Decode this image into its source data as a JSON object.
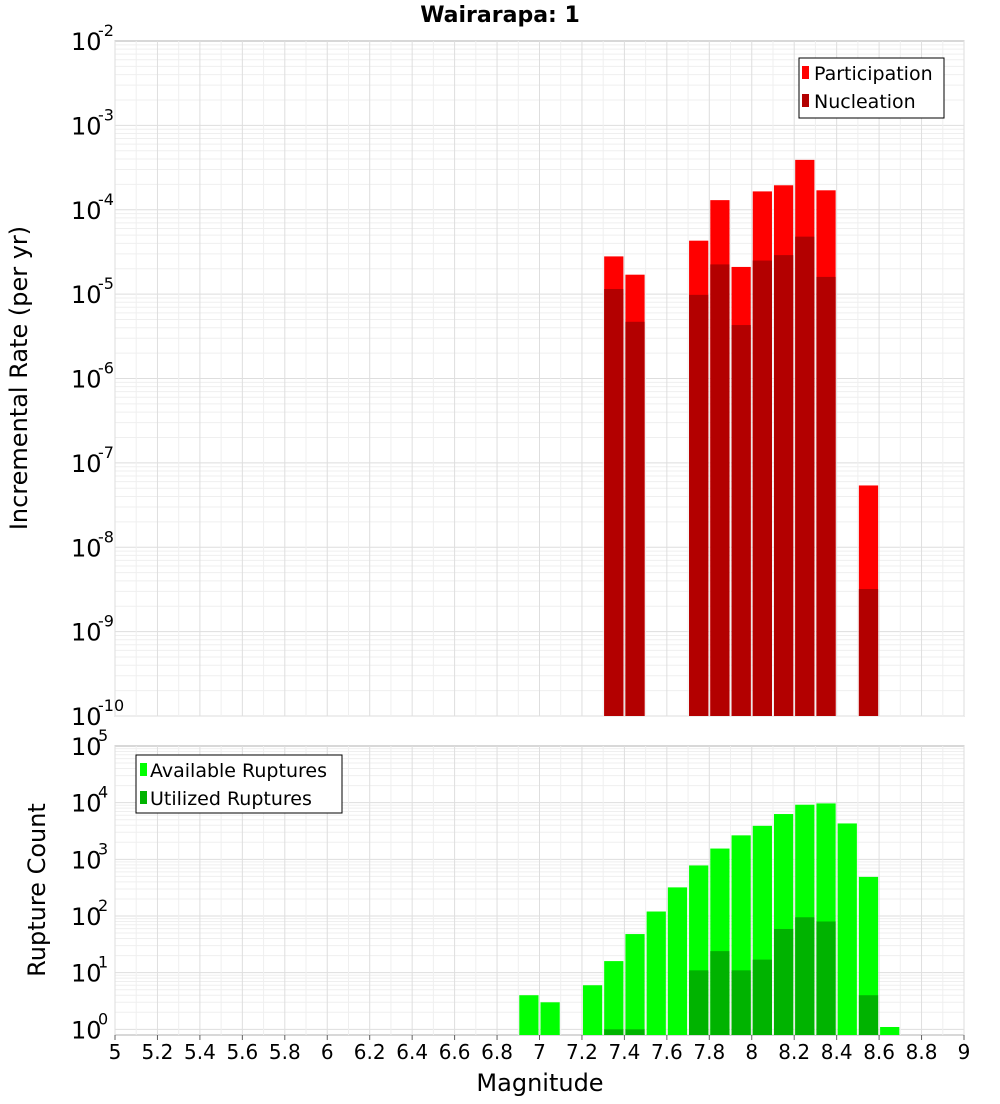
{
  "chart_data": [
    {
      "type": "bar",
      "title": "Wairarapa: 1",
      "xlabel": "",
      "ylabel": "Incremental Rate (per yr)",
      "yscale": "log",
      "ylim_exp": [
        -10,
        -2
      ],
      "xlim": [
        5,
        9
      ],
      "bar_width": 0.1,
      "legend": {
        "placement": "top-right",
        "entries": [
          "Participation",
          "Nucleation"
        ]
      },
      "colors": {
        "Participation": "#ff0000",
        "Nucleation": "#b30000"
      },
      "series": [
        {
          "name": "Participation",
          "x": [
            7.35,
            7.45,
            7.75,
            7.85,
            7.95,
            8.05,
            8.15,
            8.25,
            8.35,
            8.55
          ],
          "values": [
            2.8e-05,
            1.7e-05,
            4.3e-05,
            0.00013,
            2.1e-05,
            0.000165,
            0.000195,
            0.00039,
            0.00017,
            5.4e-08
          ]
        },
        {
          "name": "Nucleation",
          "x": [
            7.35,
            7.45,
            7.75,
            7.85,
            7.95,
            8.05,
            8.15,
            8.25,
            8.35,
            8.55
          ],
          "values": [
            1.15e-05,
            4.7e-06,
            9.8e-06,
            2.25e-05,
            4.3e-06,
            2.5e-05,
            2.9e-05,
            4.8e-05,
            1.6e-05,
            3.2e-09
          ]
        }
      ],
      "ytick_base": "10",
      "yticks_exp": [
        "-2",
        "-3",
        "-4",
        "-5",
        "-6",
        "-7",
        "-8",
        "-9",
        "-10"
      ]
    },
    {
      "type": "bar",
      "title": "",
      "xlabel": "Magnitude",
      "ylabel": "Rupture Count",
      "yscale": "log",
      "ylim_exp": [
        -0.1,
        5
      ],
      "xlim": [
        5,
        9
      ],
      "bar_width": 0.1,
      "legend": {
        "placement": "top-left",
        "entries": [
          "Available Ruptures",
          "Utilized Ruptures"
        ]
      },
      "colors": {
        "Available Ruptures": "#00ff00",
        "Utilized Ruptures": "#00b300"
      },
      "series": [
        {
          "name": "Available Ruptures",
          "x": [
            6.95,
            7.05,
            7.25,
            7.35,
            7.45,
            7.55,
            7.65,
            7.75,
            7.85,
            7.95,
            8.05,
            8.15,
            8.25,
            8.35,
            8.45,
            8.55,
            8.65
          ],
          "values": [
            4,
            3,
            6,
            16,
            48,
            120,
            320,
            780,
            1550,
            2650,
            3900,
            6300,
            9200,
            9700,
            4300,
            490,
            1.1
          ]
        },
        {
          "name": "Utilized Ruptures",
          "x": [
            7.35,
            7.45,
            7.75,
            7.85,
            7.95,
            8.05,
            8.15,
            8.25,
            8.35,
            8.55
          ],
          "values": [
            1,
            1,
            11,
            24,
            11,
            17,
            59,
            95,
            80,
            4
          ]
        }
      ],
      "ytick_base": "10",
      "yticks_exp": [
        "0",
        "1",
        "2",
        "3",
        "4",
        "5"
      ],
      "xticks": [
        "5",
        "5.2",
        "5.4",
        "5.6",
        "5.8",
        "6",
        "6.2",
        "6.4",
        "6.6",
        "6.8",
        "7",
        "7.2",
        "7.4",
        "7.6",
        "7.8",
        "8",
        "8.2",
        "8.4",
        "8.6",
        "8.8",
        "9"
      ]
    }
  ]
}
